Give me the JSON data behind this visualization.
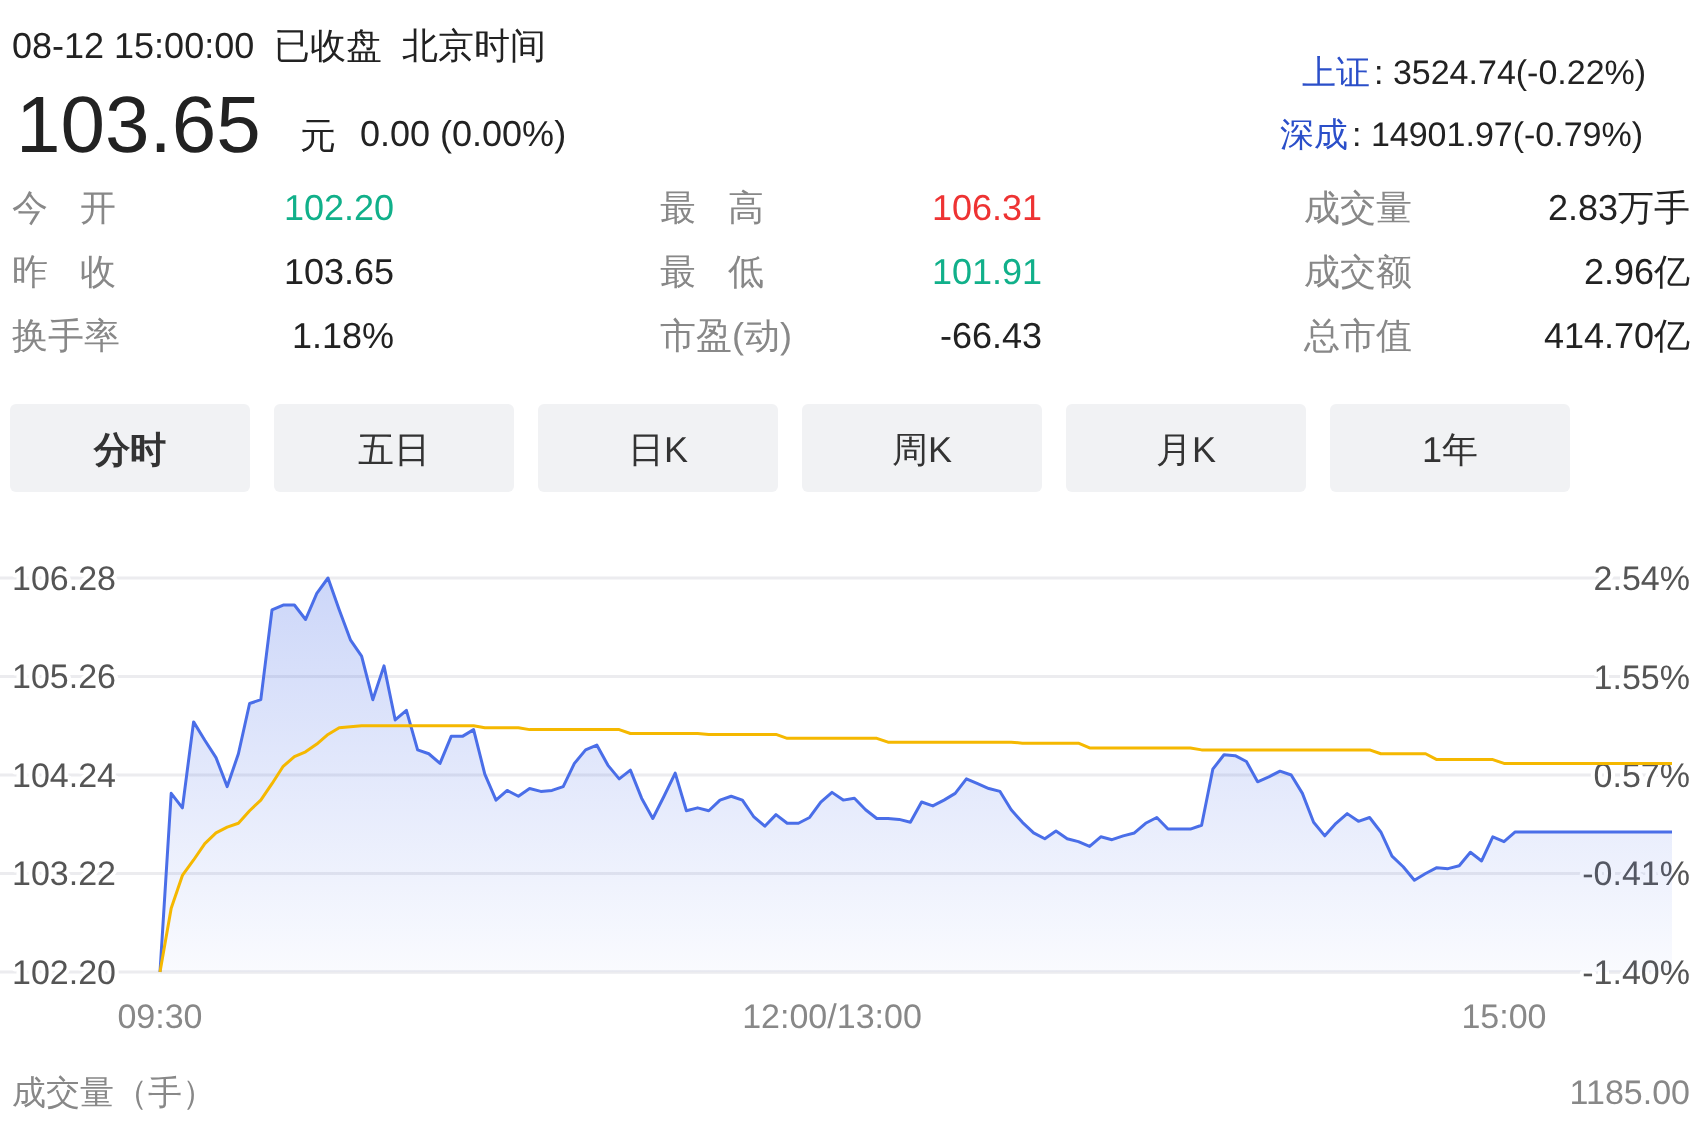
{
  "chart_data": [
    {
      "type": "other",
      "title": "08-12 15:00:00  已收盘  北京时间",
      "annotations": [
        "103.65",
        "元",
        "0.00 (0.00%)",
        "上证",
        ": 3524.74(-0.22%)",
        "深成",
        ": 14901.97(-0.79%)",
        "今 开",
        "102.20",
        "最 高",
        "106.31",
        "成交量",
        "2.83万手",
        "昨 收",
        "103.65",
        "最 低",
        "101.91",
        "成交额",
        "2.96亿",
        "换手率",
        "1.18%",
        "市盈(动)",
        "-66.43",
        "总市值",
        "414.70亿",
        "分时",
        "五日",
        "日K",
        "周K",
        "月K",
        "1年"
      ]
    },
    {
      "type": "line",
      "categories": [
        "09:30",
        null,
        null,
        null,
        null,
        null,
        null,
        null,
        null,
        null,
        null,
        null,
        null,
        null,
        null,
        null,
        null,
        null,
        null,
        null,
        null,
        null,
        null,
        null,
        null,
        null,
        null,
        null,
        null,
        null,
        null,
        null,
        null,
        null,
        null,
        null,
        null,
        null,
        null,
        null,
        null,
        null,
        null,
        null,
        null,
        null,
        null,
        null,
        null,
        null,
        null,
        null,
        null,
        null,
        null,
        null,
        null,
        null,
        null,
        null,
        "12:00/13:00",
        null,
        null,
        null,
        null,
        null,
        null,
        null,
        null,
        null,
        null,
        null,
        null,
        null,
        null,
        null,
        null,
        null,
        null,
        null,
        null,
        null,
        null,
        null,
        null,
        null,
        null,
        null,
        null,
        null,
        null,
        null,
        null,
        null,
        null,
        null,
        null,
        null,
        null,
        null,
        null,
        null,
        null,
        null,
        null,
        null,
        null,
        null,
        null,
        null,
        null,
        null,
        null,
        null,
        null,
        null,
        null,
        null,
        null,
        null,
        "15:00",
        null,
        null,
        null,
        null,
        null,
        null,
        null,
        null,
        null,
        null,
        null,
        null,
        null,
        null,
        null
      ],
      "ylim": [
        102.2,
        106.28
      ],
      "yticks": [
        {
          "value": 102.2,
          "label": "102.20"
        },
        103.22,
        104.24,
        105.26,
        106.28
      ],
      "y2lim": [
        -1.4,
        2.54
      ],
      "y2ticks": [
        {
          "value": -1.4,
          "label": "-1.40%"
        },
        {
          "value": -0.41,
          "label": "-0.41%"
        },
        {
          "value": 0.57,
          "label": "0.57%"
        },
        {
          "value": 1.55,
          "label": "1.55%"
        },
        {
          "value": 2.54,
          "label": "2.54%"
        }
      ],
      "grid": "y",
      "annotations": [
        "成交量（手）",
        "1185.00"
      ],
      "series": [
        {
          "type": "area",
          "color": "#4a6ee8",
          "values": [
            102.2,
            104.05,
            103.9,
            104.79,
            104.6,
            104.42,
            104.12,
            104.46,
            104.98,
            105.02,
            105.95,
            106.0,
            106.0,
            105.85,
            106.12,
            106.28,
            105.95,
            105.64,
            105.47,
            105.02,
            105.37,
            104.81,
            104.91,
            104.5,
            104.46,
            104.36,
            104.64,
            104.64,
            104.71,
            104.25,
            103.98,
            104.08,
            104.02,
            104.1,
            104.07,
            104.08,
            104.12,
            104.36,
            104.5,
            104.55,
            104.34,
            104.2,
            104.29,
            104.0,
            103.79,
            104.02,
            104.26,
            103.87,
            103.9,
            103.87,
            103.98,
            104.02,
            103.98,
            103.81,
            103.71,
            103.83,
            103.74,
            103.74,
            103.8,
            103.96,
            104.06,
            103.98,
            104.0,
            103.88,
            103.79,
            103.79,
            103.78,
            103.75,
            103.96,
            103.92,
            103.98,
            104.05,
            104.2,
            104.15,
            104.1,
            104.07,
            103.88,
            103.75,
            103.64,
            103.58,
            103.66,
            103.58,
            103.55,
            103.5,
            103.6,
            103.57,
            103.61,
            103.64,
            103.74,
            103.8,
            103.68,
            103.68,
            103.68,
            103.72,
            104.3,
            104.45,
            104.44,
            104.38,
            104.17,
            104.22,
            104.28,
            104.24,
            104.05,
            103.75,
            103.61,
            103.74,
            103.84,
            103.76,
            103.8,
            103.65,
            103.4,
            103.29,
            103.15,
            103.22,
            103.28,
            103.27,
            103.3,
            103.44,
            103.35,
            103.6,
            103.55,
            103.65,
            103.65,
            103.65,
            103.65,
            103.65,
            103.65,
            103.65,
            103.65,
            103.65,
            103.65,
            103.65,
            103.65,
            103.65,
            103.65,
            103.65
          ]
        },
        {
          "type": "line",
          "color": "#f5b800",
          "values": [
            102.2,
            102.86,
            103.2,
            103.36,
            103.53,
            103.64,
            103.7,
            103.74,
            103.87,
            103.98,
            104.15,
            104.33,
            104.43,
            104.48,
            104.56,
            104.66,
            104.73,
            104.74,
            104.75,
            104.75,
            104.75,
            104.75,
            104.75,
            104.75,
            104.75,
            104.75,
            104.75,
            104.75,
            104.75,
            104.73,
            104.73,
            104.73,
            104.73,
            104.71,
            104.71,
            104.71,
            104.71,
            104.71,
            104.71,
            104.71,
            104.71,
            104.71,
            104.67,
            104.67,
            104.67,
            104.67,
            104.67,
            104.67,
            104.67,
            104.66,
            104.66,
            104.66,
            104.66,
            104.66,
            104.66,
            104.66,
            104.62,
            104.62,
            104.62,
            104.62,
            104.62,
            104.62,
            104.62,
            104.62,
            104.62,
            104.58,
            104.58,
            104.58,
            104.58,
            104.58,
            104.58,
            104.58,
            104.58,
            104.58,
            104.58,
            104.58,
            104.58,
            104.57,
            104.57,
            104.57,
            104.57,
            104.57,
            104.57,
            104.52,
            104.52,
            104.52,
            104.52,
            104.52,
            104.52,
            104.52,
            104.52,
            104.52,
            104.52,
            104.5,
            104.5,
            104.5,
            104.5,
            104.5,
            104.5,
            104.5,
            104.5,
            104.5,
            104.5,
            104.5,
            104.5,
            104.5,
            104.5,
            104.5,
            104.5,
            104.46,
            104.46,
            104.46,
            104.46,
            104.46,
            104.4,
            104.4,
            104.4,
            104.4,
            104.4,
            104.4,
            104.36,
            104.36,
            104.36,
            104.36,
            104.36,
            104.36,
            104.36,
            104.36,
            104.36,
            104.36,
            104.36,
            104.36,
            104.36,
            104.36,
            104.36,
            104.36
          ]
        }
      ]
    }
  ]
}
